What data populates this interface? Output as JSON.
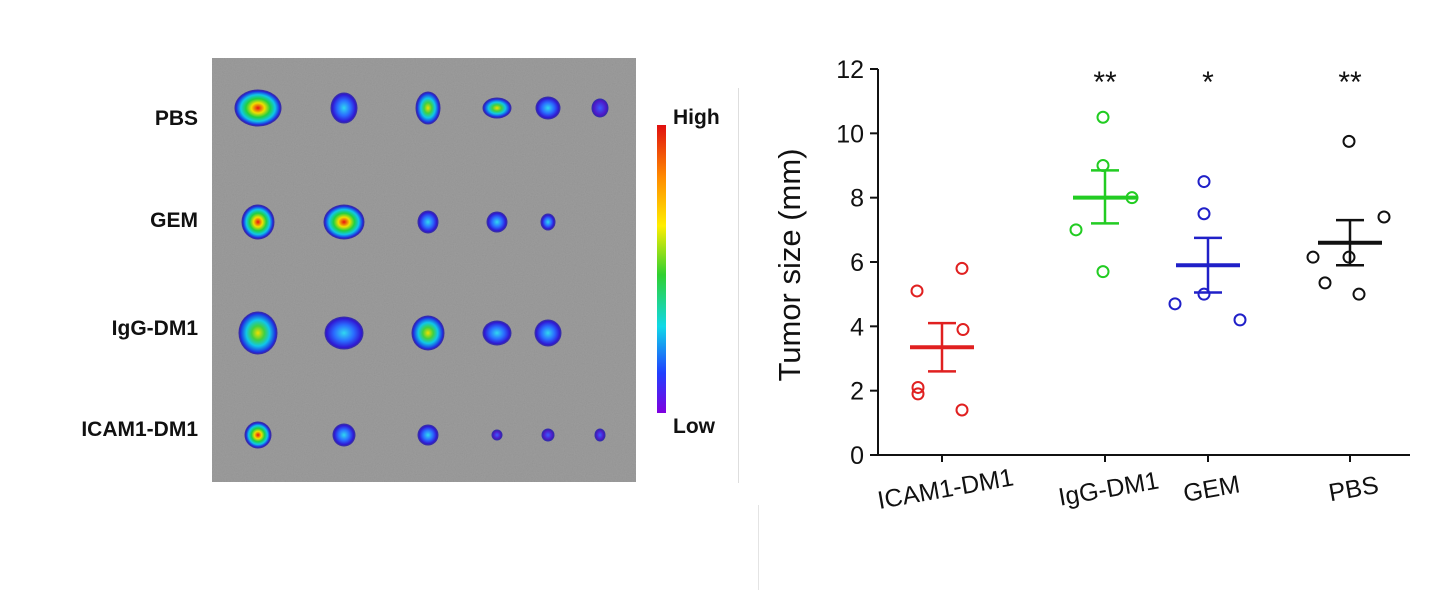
{
  "imaging": {
    "rows": [
      {
        "label": "PBS",
        "spots": 6
      },
      {
        "label": "GEM",
        "spots": 5
      },
      {
        "label": "IgG-DM1",
        "spots": 5
      },
      {
        "label": "ICAM1-DM1",
        "spots": 6
      }
    ],
    "scale": {
      "high_label": "High",
      "low_label": "Low"
    }
  },
  "chart_data": {
    "type": "scatter",
    "title": "",
    "ylabel": "Tumor size (mm)",
    "xlabel": "",
    "ylim": [
      0,
      12
    ],
    "yticks": [
      0,
      2,
      4,
      6,
      8,
      10,
      12
    ],
    "categories": [
      "ICAM1-DM1",
      "IgG-DM1",
      "GEM",
      "PBS"
    ],
    "series": [
      {
        "category": "ICAM1-DM1",
        "color": "#e02020",
        "points": [
          5.1,
          5.8,
          3.9,
          2.1,
          1.9,
          1.4
        ],
        "mean": 3.35,
        "sem": [
          2.6,
          4.1
        ],
        "significance": ""
      },
      {
        "category": "IgG-DM1",
        "color": "#22cc22",
        "points": [
          10.5,
          9.0,
          8.0,
          7.0,
          5.7
        ],
        "mean": 8.0,
        "sem": [
          7.2,
          8.85
        ],
        "significance": "**"
      },
      {
        "category": "GEM",
        "color": "#2020c8",
        "points": [
          8.5,
          7.5,
          4.7,
          5.0,
          4.2
        ],
        "mean": 5.9,
        "sem": [
          5.05,
          6.75
        ],
        "significance": "*"
      },
      {
        "category": "PBS",
        "color": "#111111",
        "points": [
          9.75,
          7.4,
          6.15,
          6.15,
          5.35,
          5.0
        ],
        "mean": 6.6,
        "sem": [
          5.9,
          7.3
        ],
        "significance": "**"
      }
    ]
  }
}
